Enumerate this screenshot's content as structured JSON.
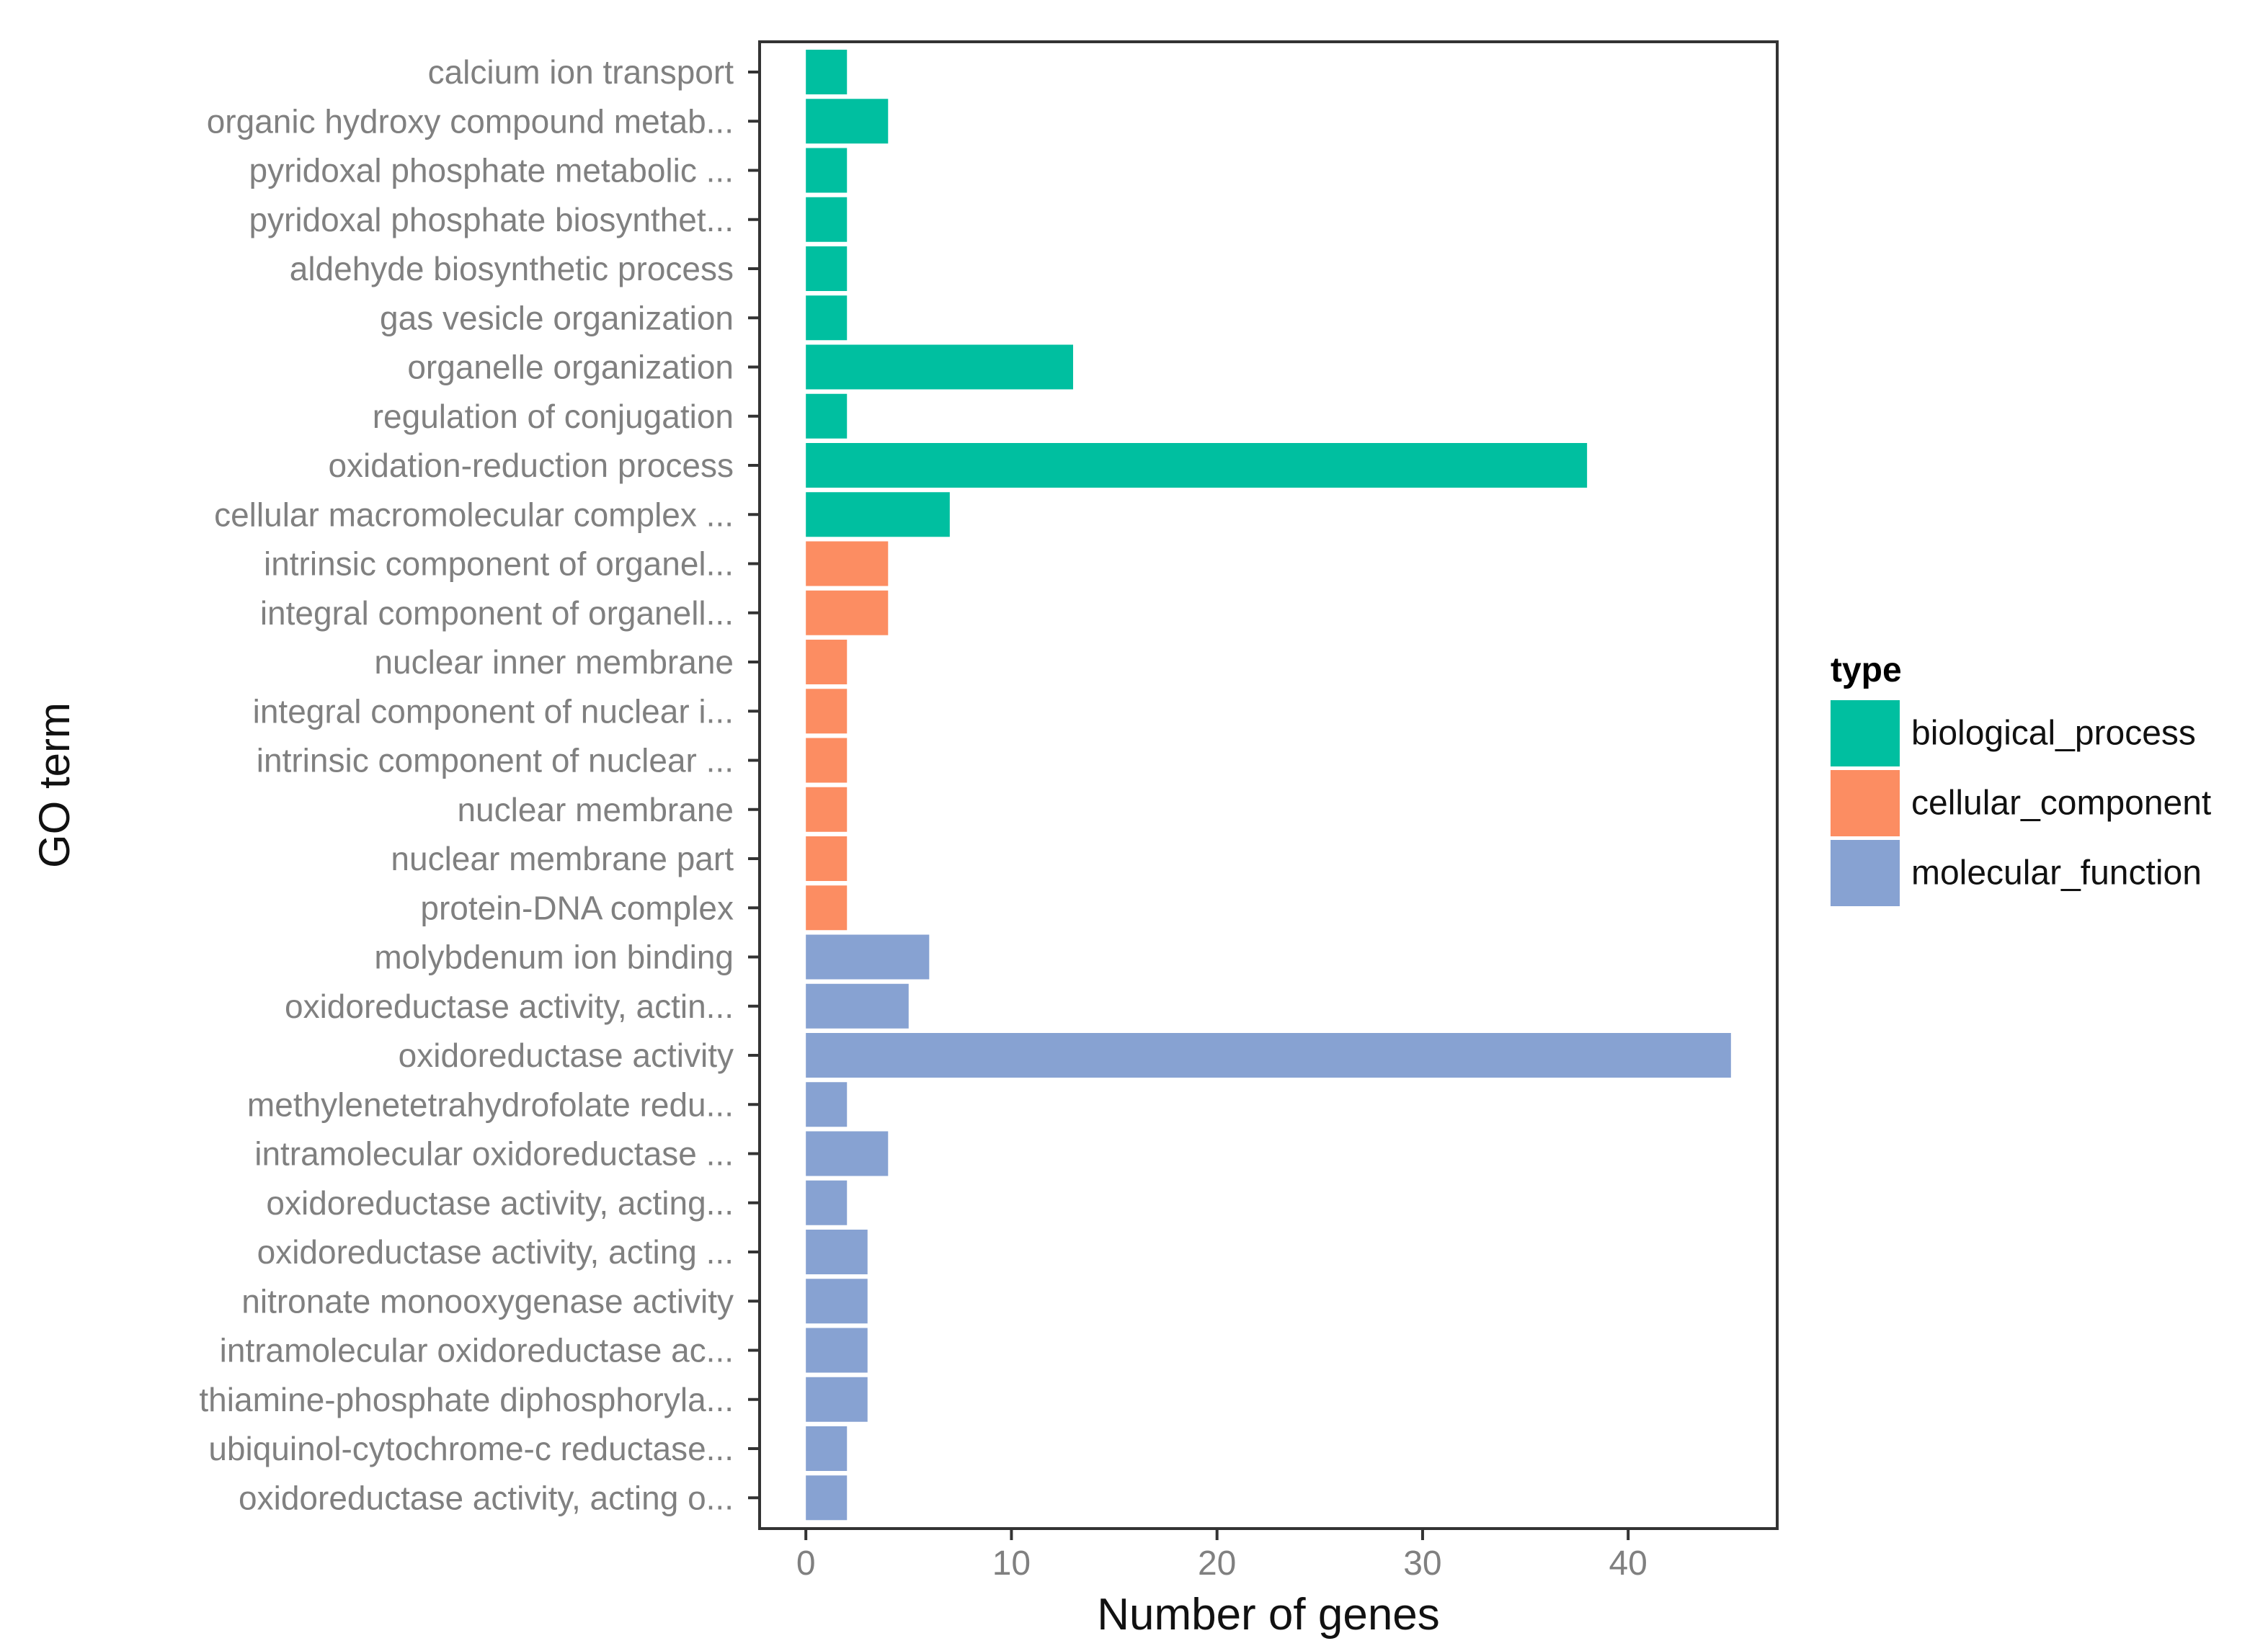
{
  "chart_data": {
    "type": "bar",
    "orientation": "horizontal",
    "xlabel": "Number of genes",
    "ylabel": "GO term",
    "xlim": [
      -2.25,
      47.25
    ],
    "xticks": [
      0,
      10,
      20,
      30,
      40
    ],
    "grid": false,
    "legend": {
      "title": "type",
      "placement": "right",
      "entries": [
        {
          "name": "biological_process",
          "color": "#00BFA0"
        },
        {
          "name": "cellular_component",
          "color": "#FC8D62"
        },
        {
          "name": "molecular_function",
          "color": "#87A2D2"
        }
      ]
    },
    "categories": [
      "calcium ion transport",
      "organic hydroxy compound metab...",
      "pyridoxal phosphate metabolic ...",
      "pyridoxal phosphate biosynthet...",
      "aldehyde biosynthetic process",
      "gas vesicle organization",
      "organelle organization",
      "regulation of conjugation",
      "oxidation-reduction process",
      "cellular macromolecular complex ...",
      "intrinsic component of organel...",
      "integral component of organell...",
      "nuclear inner membrane",
      "integral component of nuclear i...",
      "intrinsic component of nuclear ...",
      "nuclear membrane",
      "nuclear membrane part",
      "protein-DNA complex",
      "molybdenum ion binding",
      "oxidoreductase activity, actin...",
      "oxidoreductase activity",
      "methylenetetrahydrofolate redu...",
      "intramolecular oxidoreductase ...",
      "oxidoreductase activity, acting...",
      "oxidoreductase activity, acting ...",
      "nitronate monooxygenase activity",
      "intramolecular oxidoreductase ac...",
      "thiamine-phosphate diphosphoryla...",
      "ubiquinol-cytochrome-c reductase...",
      "oxidoreductase activity, acting o..."
    ],
    "values": [
      2,
      4,
      2,
      2,
      2,
      2,
      13,
      2,
      38,
      7,
      4,
      4,
      2,
      2,
      2,
      2,
      2,
      2,
      6,
      5,
      45,
      2,
      4,
      2,
      3,
      3,
      3,
      3,
      2,
      2
    ],
    "types": [
      "biological_process",
      "biological_process",
      "biological_process",
      "biological_process",
      "biological_process",
      "biological_process",
      "biological_process",
      "biological_process",
      "biological_process",
      "biological_process",
      "cellular_component",
      "cellular_component",
      "cellular_component",
      "cellular_component",
      "cellular_component",
      "cellular_component",
      "cellular_component",
      "cellular_component",
      "molecular_function",
      "molecular_function",
      "molecular_function",
      "molecular_function",
      "molecular_function",
      "molecular_function",
      "molecular_function",
      "molecular_function",
      "molecular_function",
      "molecular_function",
      "molecular_function",
      "molecular_function"
    ]
  }
}
